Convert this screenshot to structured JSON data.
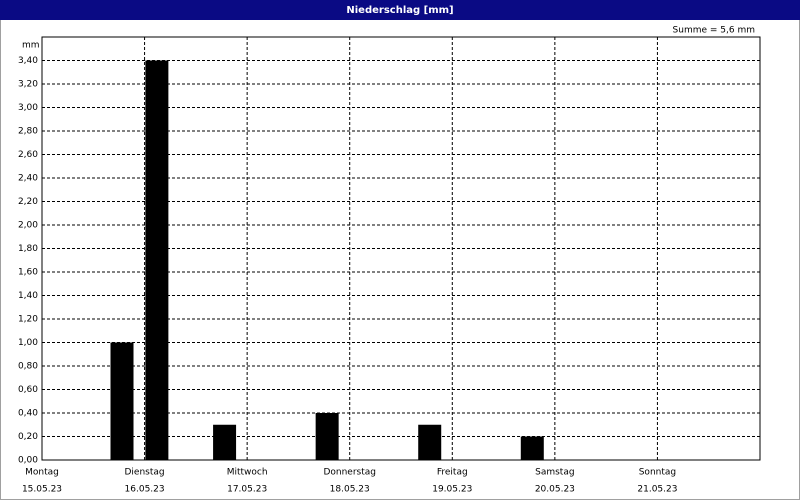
{
  "window_title": "Niederschlag [mm]",
  "chart_data": {
    "type": "bar",
    "y_unit": "mm",
    "annotation": "Summe = 5,6 mm",
    "x": [
      0.78,
      1.12,
      1.78,
      2.78,
      3.78,
      4.78
    ],
    "series": [
      {
        "name": "Niederschlag",
        "color": "#000000",
        "values": [
          1.0,
          3.4,
          0.3,
          0.4,
          0.3,
          0.2
        ]
      }
    ],
    "xlim": [
      0,
      7
    ],
    "xticks": [
      {
        "value": 0,
        "label": [
          "Montag",
          "15.05.23"
        ]
      },
      {
        "value": 1,
        "label": [
          "Dienstag",
          "16.05.23"
        ]
      },
      {
        "value": 2,
        "label": [
          "Mittwoch",
          "17.05.23"
        ]
      },
      {
        "value": 3,
        "label": [
          "Donnerstag",
          "18.05.23"
        ]
      },
      {
        "value": 4,
        "label": [
          "Freitag",
          "19.05.23"
        ]
      },
      {
        "value": 5,
        "label": [
          "Samstag",
          "20.05.23"
        ]
      },
      {
        "value": 6,
        "label": [
          "Sonntag",
          "21.05.23"
        ]
      }
    ],
    "ylim": [
      0,
      3.6
    ],
    "yticks": [
      {
        "value": 0,
        "label": "0,00"
      },
      {
        "value": 0.2,
        "label": "0,20"
      },
      {
        "value": 0.4,
        "label": "0,40"
      },
      {
        "value": 0.6,
        "label": "0,60"
      },
      {
        "value": 0.8,
        "label": "0,80"
      },
      {
        "value": 1.0,
        "label": "1,00"
      },
      {
        "value": 1.2,
        "label": "1,20"
      },
      {
        "value": 1.4,
        "label": "1,40"
      },
      {
        "value": 1.6,
        "label": "1,60"
      },
      {
        "value": 1.8,
        "label": "1,80"
      },
      {
        "value": 2.0,
        "label": "2,00"
      },
      {
        "value": 2.2,
        "label": "2,20"
      },
      {
        "value": 2.4,
        "label": "2,40"
      },
      {
        "value": 2.6,
        "label": "2,60"
      },
      {
        "value": 2.8,
        "label": "2,80"
      },
      {
        "value": 3.0,
        "label": "3,00"
      },
      {
        "value": 3.2,
        "label": "3,20"
      },
      {
        "value": 3.4,
        "label": "3,40"
      }
    ],
    "grid": true
  }
}
